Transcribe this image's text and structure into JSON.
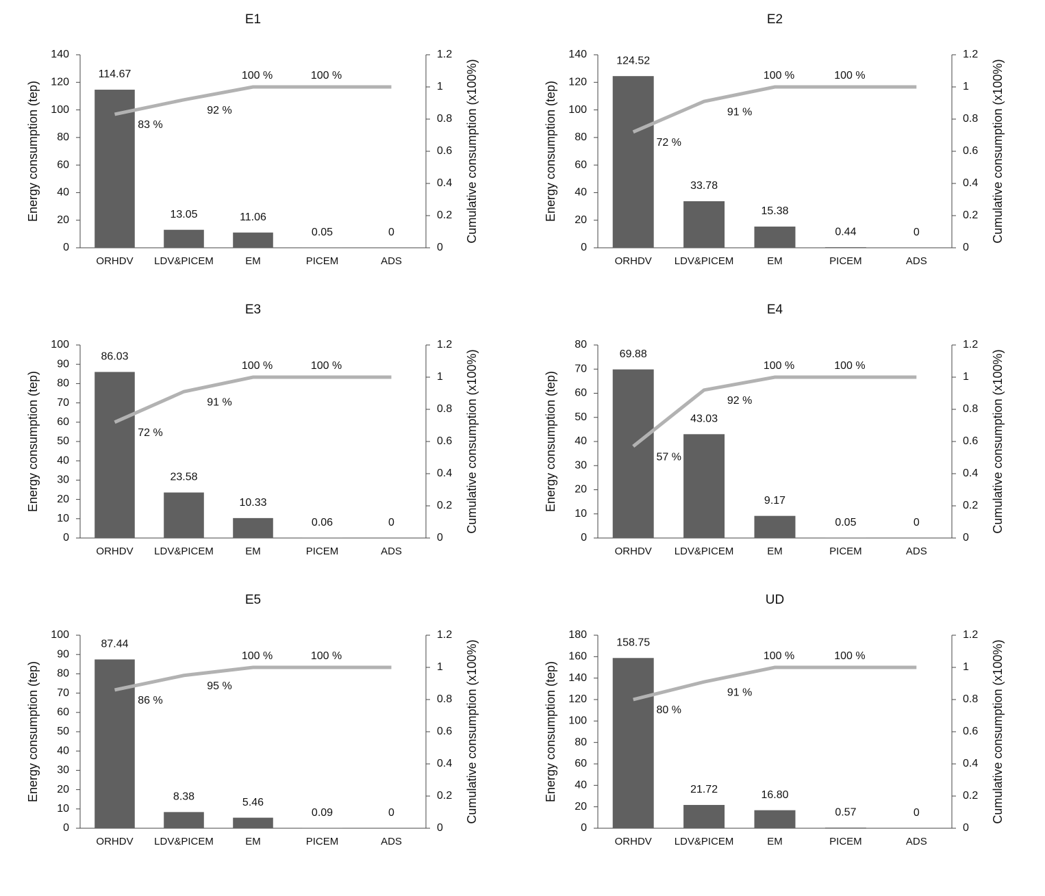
{
  "chart_data": [
    {
      "type": "bar",
      "title": "E1",
      "y_label": "Energy consumption (tep)",
      "y2_label": "Cumulative consumption (x100%)",
      "categories": [
        "ORHDV",
        "LDV&PICEM",
        "EM",
        "PICEM",
        "ADS"
      ],
      "ylim": [
        0,
        140
      ],
      "yticks": [
        0,
        20,
        40,
        60,
        80,
        100,
        120,
        140
      ],
      "y2lim": [
        0,
        1.2
      ],
      "y2ticks": [
        0,
        0.2,
        0.4,
        0.6,
        0.8,
        1,
        1.2
      ],
      "series": [
        {
          "type": "bar",
          "color": "#606060",
          "values": [
            114.67,
            13.05,
            11.06,
            0.05,
            0
          ]
        },
        {
          "type": "line",
          "axis": "y2",
          "color": "#b2b2b2",
          "values": [
            0.83,
            0.92,
            1,
            1,
            1
          ],
          "value_labels": [
            "83 %",
            "92 %",
            "100 %",
            "100 %",
            null
          ]
        }
      ]
    },
    {
      "type": "bar",
      "title": "E2",
      "y_label": "Energy consumption (tep)",
      "y2_label": "Cumulative consumption (x100%)",
      "categories": [
        "ORHDV",
        "LDV&PICEM",
        "EM",
        "PICEM",
        "ADS"
      ],
      "ylim": [
        0,
        140
      ],
      "yticks": [
        0,
        20,
        40,
        60,
        80,
        100,
        120,
        140
      ],
      "y2lim": [
        0,
        1.2
      ],
      "y2ticks": [
        0,
        0.2,
        0.4,
        0.6,
        0.8,
        1,
        1.2
      ],
      "series": [
        {
          "type": "bar",
          "color": "#606060",
          "values": [
            124.52,
            33.78,
            15.38,
            0.44,
            0
          ]
        },
        {
          "type": "line",
          "axis": "y2",
          "color": "#b2b2b2",
          "values": [
            0.72,
            0.91,
            1,
            1,
            1
          ],
          "value_labels": [
            "72 %",
            "91 %",
            "100 %",
            "100 %",
            null
          ]
        }
      ]
    },
    {
      "type": "bar",
      "title": "E3",
      "y_label": "Energy consumption (tep)",
      "y2_label": "Cumulative consumption (x100%)",
      "categories": [
        "ORHDV",
        "LDV&PICEM",
        "EM",
        "PICEM",
        "ADS"
      ],
      "ylim": [
        0,
        100
      ],
      "yticks": [
        0,
        10,
        20,
        30,
        40,
        50,
        60,
        70,
        80,
        90,
        100
      ],
      "y2lim": [
        0,
        1.2
      ],
      "y2ticks": [
        0,
        0.2,
        0.4,
        0.6,
        0.8,
        1,
        1.2
      ],
      "series": [
        {
          "type": "bar",
          "color": "#606060",
          "values": [
            86.03,
            23.58,
            10.33,
            0.06,
            0
          ]
        },
        {
          "type": "line",
          "axis": "y2",
          "color": "#b2b2b2",
          "values": [
            0.72,
            0.91,
            1,
            1,
            1
          ],
          "value_labels": [
            "72 %",
            "91 %",
            "100 %",
            "100 %",
            null
          ]
        }
      ]
    },
    {
      "type": "bar",
      "title": "E4",
      "y_label": "Energy consumption (tep)",
      "y2_label": "Cumulative consumption (x100%)",
      "categories": [
        "ORHDV",
        "LDV&PICEM",
        "EM",
        "PICEM",
        "ADS"
      ],
      "ylim": [
        0,
        80
      ],
      "yticks": [
        0,
        10,
        20,
        30,
        40,
        50,
        60,
        70,
        80
      ],
      "y2lim": [
        0,
        1.2
      ],
      "y2ticks": [
        0,
        0.2,
        0.4,
        0.6,
        0.8,
        1,
        1.2
      ],
      "series": [
        {
          "type": "bar",
          "color": "#606060",
          "values": [
            69.88,
            43.03,
            9.17,
            0.05,
            0
          ]
        },
        {
          "type": "line",
          "axis": "y2",
          "color": "#b2b2b2",
          "values": [
            0.57,
            0.92,
            1,
            1,
            1
          ],
          "value_labels": [
            "57 %",
            "92 %",
            "100 %",
            "100 %",
            null
          ]
        }
      ]
    },
    {
      "type": "bar",
      "title": "E5",
      "y_label": "Energy consumption (tep)",
      "y2_label": "Cumulative consumption (x100%)",
      "categories": [
        "ORHDV",
        "LDV&PICEM",
        "EM",
        "PICEM",
        "ADS"
      ],
      "ylim": [
        0,
        100
      ],
      "yticks": [
        0,
        10,
        20,
        30,
        40,
        50,
        60,
        70,
        80,
        90,
        100
      ],
      "y2lim": [
        0,
        1.2
      ],
      "y2ticks": [
        0,
        0.2,
        0.4,
        0.6,
        0.8,
        1,
        1.2
      ],
      "series": [
        {
          "type": "bar",
          "color": "#606060",
          "values": [
            87.44,
            8.38,
            5.46,
            0.09,
            0
          ]
        },
        {
          "type": "line",
          "axis": "y2",
          "color": "#b2b2b2",
          "values": [
            0.86,
            0.95,
            1,
            1,
            1
          ],
          "value_labels": [
            "86 %",
            "95 %",
            "100 %",
            "100 %",
            null
          ]
        }
      ]
    },
    {
      "type": "bar",
      "title": "UD",
      "y_label": "Energy consumption (tep)",
      "y2_label": "Cumulative consumption (x100%)",
      "categories": [
        "ORHDV",
        "LDV&PICEM",
        "EM",
        "PICEM",
        "ADS"
      ],
      "ylim": [
        0,
        180
      ],
      "yticks": [
        0,
        20,
        40,
        60,
        80,
        100,
        120,
        140,
        160,
        180
      ],
      "y2lim": [
        0,
        1.2
      ],
      "y2ticks": [
        0,
        0.2,
        0.4,
        0.6,
        0.8,
        1,
        1.2
      ],
      "series": [
        {
          "type": "bar",
          "color": "#606060",
          "values": [
            158.75,
            21.72,
            16.8,
            0.57,
            0
          ],
          "value_labels": [
            "158.75",
            "21.72",
            "16.80",
            "0.57",
            "0"
          ]
        },
        {
          "type": "line",
          "axis": "y2",
          "color": "#b2b2b2",
          "values": [
            0.8,
            0.91,
            1,
            1,
            1
          ],
          "value_labels": [
            "80 %",
            "91 %",
            "100 %",
            "100 %",
            null
          ]
        }
      ]
    }
  ]
}
